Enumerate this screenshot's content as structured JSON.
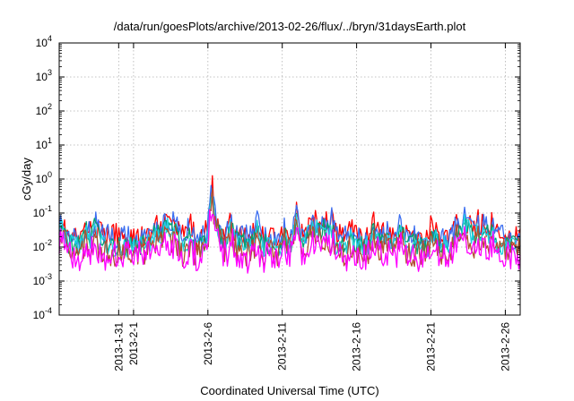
{
  "chart_data": {
    "type": "line",
    "title": "/data/run/goesPlots/archive/2013-02-26/flux/../bryn/31daysEarth.plot",
    "xlabel": "Coordinated Universal Time (UTC)",
    "ylabel": "cGy/day",
    "yscale": "log",
    "ylim": [
      0.0001,
      10000
    ],
    "xlim": [
      "2013-01-27",
      "2013-02-27"
    ],
    "y_ticks": [
      {
        "base": "10",
        "exp": "-4"
      },
      {
        "base": "10",
        "exp": "-3"
      },
      {
        "base": "10",
        "exp": "-2"
      },
      {
        "base": "10",
        "exp": "-1"
      },
      {
        "base": "10",
        "exp": "0"
      },
      {
        "base": "10",
        "exp": "1"
      },
      {
        "base": "10",
        "exp": "2"
      },
      {
        "base": "10",
        "exp": "3"
      },
      {
        "base": "10",
        "exp": "4"
      }
    ],
    "x_ticks": [
      {
        "date": "2013-01-31",
        "label": "2013-1-31"
      },
      {
        "date": "2013-02-01",
        "label": "2013-2-1"
      },
      {
        "date": "2013-02-06",
        "label": "2013-2-6"
      },
      {
        "date": "2013-02-11",
        "label": "2013-2-11"
      },
      {
        "date": "2013-02-16",
        "label": "2013-2-16"
      },
      {
        "date": "2013-02-21",
        "label": "2013-2-21"
      },
      {
        "date": "2013-02-26",
        "label": "2013-2-26"
      }
    ],
    "grid": true,
    "series": [
      {
        "color": "#ff0000",
        "level": 0.02,
        "spread": 0.35
      },
      {
        "color": "#3a6df0",
        "level": 0.019,
        "spread": 0.35
      },
      {
        "color": "#00a070",
        "level": 0.012,
        "spread": 0.3
      },
      {
        "color": "#20d0e0",
        "level": 0.011,
        "spread": 0.3
      },
      {
        "color": "#b05030",
        "level": 0.007,
        "spread": 0.4
      },
      {
        "color": "#ff00ff",
        "level": 0.005,
        "spread": 0.45
      }
    ]
  }
}
